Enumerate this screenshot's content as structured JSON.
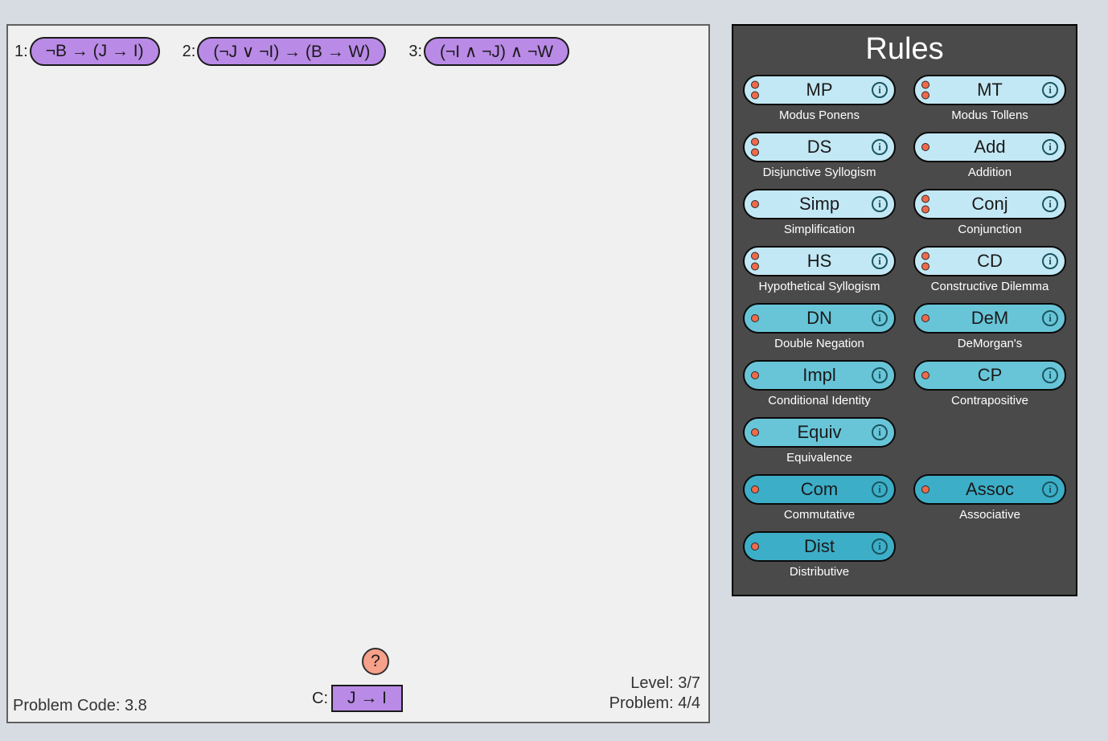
{
  "colors": {
    "page_bg": "#d7dbe2",
    "workspace_bg": "#f0f0f0",
    "workspace_border": "#606060",
    "panel_bg": "#4a4a4a",
    "pill_purple": "#b98ae6",
    "help_bg": "#f7a08a",
    "rule_light": "#c3e8f5",
    "rule_mid": "#68c5d8",
    "rule_dark": "#3daec7",
    "dot": "#f06a4a"
  },
  "workspace": {
    "premises": [
      {
        "num": "1:",
        "text": "¬B → (J → I)"
      },
      {
        "num": "2:",
        "text": "(¬J ∨ ¬I) → (B → W)"
      },
      {
        "num": "3:",
        "text": "(¬I ∧ ¬J) ∧ ¬W"
      }
    ],
    "help_label": "?",
    "conclusion_prefix": "C:",
    "conclusion_text": "J → I",
    "problem_code": "Problem Code: 3.8",
    "level_text": "Level: 3/7",
    "problem_text": "Problem: 4/4"
  },
  "rules_panel": {
    "title": "Rules",
    "rules": [
      {
        "abbr": "MP",
        "name": "Modus Ponens",
        "tier": "light",
        "dots": 2
      },
      {
        "abbr": "MT",
        "name": "Modus Tollens",
        "tier": "light",
        "dots": 2
      },
      {
        "abbr": "DS",
        "name": "Disjunctive Syllogism",
        "tier": "light",
        "dots": 2
      },
      {
        "abbr": "Add",
        "name": "Addition",
        "tier": "light",
        "dots": 1
      },
      {
        "abbr": "Simp",
        "name": "Simplification",
        "tier": "light",
        "dots": 1
      },
      {
        "abbr": "Conj",
        "name": "Conjunction",
        "tier": "light",
        "dots": 2
      },
      {
        "abbr": "HS",
        "name": "Hypothetical Syllogism",
        "tier": "light",
        "dots": 2
      },
      {
        "abbr": "CD",
        "name": "Constructive Dilemma",
        "tier": "light",
        "dots": 2
      },
      {
        "abbr": "DN",
        "name": "Double Negation",
        "tier": "mid",
        "dots": 1
      },
      {
        "abbr": "DeM",
        "name": "DeMorgan's",
        "tier": "mid",
        "dots": 1
      },
      {
        "abbr": "Impl",
        "name": "Conditional Identity",
        "tier": "mid",
        "dots": 1
      },
      {
        "abbr": "CP",
        "name": "Contrapositive",
        "tier": "mid",
        "dots": 1
      },
      {
        "abbr": "Equiv",
        "name": "Equivalence",
        "tier": "mid",
        "dots": 1
      },
      null,
      {
        "abbr": "Com",
        "name": "Commutative",
        "tier": "dark",
        "dots": 1
      },
      {
        "abbr": "Assoc",
        "name": "Associative",
        "tier": "dark",
        "dots": 1
      },
      {
        "abbr": "Dist",
        "name": "Distributive",
        "tier": "dark",
        "dots": 1
      },
      null
    ]
  }
}
